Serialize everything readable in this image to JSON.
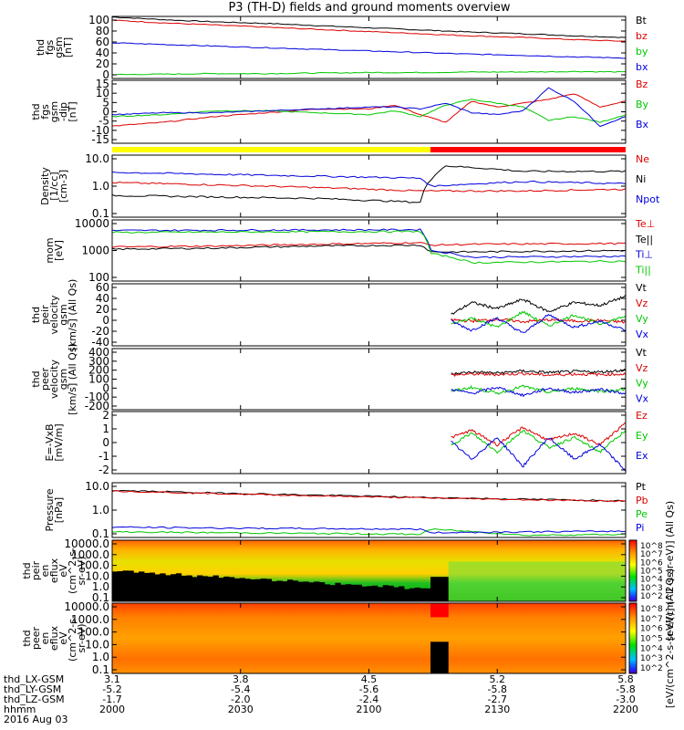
{
  "title": "P3 (TH-D) fields and ground moments overview",
  "date_label": "2016 Aug 03",
  "colors": {
    "red": "#dd0000",
    "green": "#00c800",
    "blue": "#0000dd",
    "black": "#000000",
    "yellow": "#ffff00",
    "barred": "#ff0000"
  },
  "ephemeris": {
    "rows": [
      {
        "label": "thd_LX-GSM",
        "values": [
          "3.1",
          "3.8",
          "4.5",
          "5.2",
          "5.8"
        ]
      },
      {
        "label": "thd_LY-GSM",
        "values": [
          "-5.2",
          "-5.4",
          "-5.6",
          "-5.8",
          "-5.8"
        ]
      },
      {
        "label": "thd_LZ-GSM",
        "values": [
          "-1.7",
          "-2.0",
          "-2.4",
          "-2.7",
          "-3.0"
        ]
      },
      {
        "label": "hhmm",
        "values": [
          "2000",
          "2030",
          "2100",
          "2130",
          "2200"
        ]
      }
    ]
  },
  "colorbars": [
    {
      "label": "[eV/(cm^2-s-sr-eV)] (All Qs)",
      "ticks": [
        "10^8",
        "10^7",
        "10^6",
        "10^5",
        "10^4",
        "10^3",
        "10^2"
      ]
    },
    {
      "label": "[eV/(cm^2-s-sr-eV)] (All Qs)",
      "ticks": [
        "10^8",
        "10^7",
        "10^6",
        "10^5",
        "10^4",
        "10^3",
        "10^2"
      ]
    }
  ],
  "chart_data": {
    "type": "line",
    "x_range": [
      "20:00",
      "22:00"
    ],
    "x_ticks": [
      "3.1",
      "3.8",
      "4.5",
      "5.2",
      "5.8"
    ],
    "mode_bar": {
      "yellow_until": 0.62,
      "red_after": 0.62
    },
    "panels": [
      {
        "id": "p1",
        "ylabel": [
          "thd",
          "fgs",
          "gsm",
          "[nT]"
        ],
        "yticks": [
          "100",
          "80",
          "60",
          "40",
          "20",
          "0"
        ],
        "ylim": [
          -10,
          105
        ],
        "scale": "linear",
        "legend": [
          "Bt",
          "bz",
          "by",
          "bx"
        ],
        "series": [
          {
            "name": "Bt",
            "color": "black",
            "x": [
              0,
              0.1,
              0.2,
              0.3,
              0.4,
              0.5,
              0.6,
              0.7,
              0.8,
              0.9,
              1
            ],
            "y": [
              104,
              99,
              95,
              92,
              88,
              84,
              80,
              76,
              73,
              69,
              66
            ]
          },
          {
            "name": "bz",
            "color": "red",
            "x": [
              0,
              0.1,
              0.2,
              0.3,
              0.4,
              0.5,
              0.6,
              0.7,
              0.8,
              0.9,
              1
            ],
            "y": [
              98,
              93,
              89,
              85,
              81,
              77,
              73,
              69,
              66,
              62,
              59
            ]
          },
          {
            "name": "by",
            "color": "green",
            "x": [
              0,
              0.1,
              0.2,
              0.3,
              0.4,
              0.5,
              0.6,
              0.7,
              0.8,
              0.9,
              1
            ],
            "y": [
              -3,
              -2,
              -1,
              -1,
              0,
              1,
              1,
              2,
              2,
              3,
              2
            ]
          },
          {
            "name": "bx",
            "color": "blue",
            "x": [
              0,
              0.1,
              0.2,
              0.3,
              0.4,
              0.5,
              0.6,
              0.7,
              0.8,
              0.9,
              1
            ],
            "y": [
              56,
              53,
              50,
              47,
              44,
              41,
              38,
              35,
              33,
              30,
              28
            ]
          }
        ]
      },
      {
        "id": "p2",
        "ylabel": [
          "thd",
          "fgs",
          "gsm",
          "-dip",
          "[nT]"
        ],
        "yticks": [
          "15",
          "10",
          "5",
          "0",
          "-5",
          "-10",
          "-15"
        ],
        "ylim": [
          -17,
          16
        ],
        "scale": "linear",
        "legend": [
          "Bz",
          "By",
          "Bx"
        ],
        "series": [
          {
            "name": "Bz",
            "color": "red",
            "x": [
              0,
              0.1,
              0.2,
              0.3,
              0.4,
              0.5,
              0.55,
              0.6,
              0.65,
              0.7,
              0.75,
              0.8,
              0.85,
              0.9,
              0.95,
              1
            ],
            "y": [
              -8,
              -6,
              -3,
              -1,
              1,
              1,
              3,
              -2,
              -6,
              5,
              2,
              4,
              6,
              9,
              2,
              5
            ]
          },
          {
            "name": "By",
            "color": "green",
            "x": [
              0,
              0.1,
              0.2,
              0.3,
              0.4,
              0.5,
              0.55,
              0.6,
              0.65,
              0.7,
              0.75,
              0.8,
              0.85,
              0.9,
              0.95,
              1
            ],
            "y": [
              -3,
              -2,
              0,
              0,
              -1,
              -2,
              0,
              -3,
              3,
              6,
              4,
              2,
              -5,
              -3,
              -6,
              -2
            ]
          },
          {
            "name": "Bx",
            "color": "blue",
            "x": [
              0,
              0.1,
              0.2,
              0.3,
              0.4,
              0.5,
              0.55,
              0.6,
              0.65,
              0.7,
              0.75,
              0.8,
              0.85,
              0.9,
              0.95,
              1
            ],
            "y": [
              -2,
              -1,
              -1,
              0,
              1,
              2,
              2,
              1,
              4,
              -1,
              -2,
              0,
              12,
              5,
              -8,
              -3
            ]
          }
        ]
      },
      {
        "id": "p3",
        "ylabel": [
          "Density",
          "[1/cc]",
          "[cm-3]"
        ],
        "yticks": [
          "10.0",
          "1.0",
          "0.1"
        ],
        "ylim": [
          0.1,
          10
        ],
        "scale": "log",
        "legend": [
          "Ne",
          "Ni",
          "Npot"
        ],
        "series": [
          {
            "name": "Ne",
            "color": "red",
            "x": [
              0,
              0.2,
              0.4,
              0.6,
              0.62,
              0.8,
              1
            ],
            "y": [
              1.3,
              1.1,
              0.9,
              0.7,
              0.7,
              0.7,
              0.8
            ]
          },
          {
            "name": "Ni",
            "color": "black",
            "x": [
              0,
              0.2,
              0.4,
              0.6,
              0.62,
              0.65,
              0.8,
              1
            ],
            "y": [
              0.5,
              0.45,
              0.4,
              0.3,
              1.5,
              4.5,
              3,
              3
            ]
          },
          {
            "name": "Npot",
            "color": "blue",
            "x": [
              0,
              0.2,
              0.4,
              0.6,
              0.62,
              0.8,
              1
            ],
            "y": [
              2.8,
              2.4,
              2.1,
              1.8,
              1.0,
              1.4,
              1.2
            ]
          }
        ]
      },
      {
        "id": "p4",
        "ylabel": [
          "mom",
          "[eV]"
        ],
        "yticks": [
          "10000",
          "1000",
          "100"
        ],
        "ylim": [
          100,
          10000
        ],
        "scale": "log",
        "legend": [
          "Te⊥",
          "Te||",
          "Ti⊥",
          "Ti||"
        ],
        "series": [
          {
            "name": "Te⊥",
            "color": "red",
            "x": [
              0,
              0.2,
              0.4,
              0.6,
              0.62,
              0.7,
              1
            ],
            "y": [
              1300,
              1400,
              1600,
              1800,
              1500,
              1600,
              1700
            ]
          },
          {
            "name": "Te||",
            "color": "black",
            "x": [
              0,
              0.2,
              0.4,
              0.6,
              0.62,
              0.7,
              1
            ],
            "y": [
              1100,
              1200,
              1400,
              1500,
              900,
              900,
              1000
            ]
          },
          {
            "name": "Ti⊥",
            "color": "blue",
            "x": [
              0,
              0.2,
              0.4,
              0.6,
              0.62,
              0.7,
              1
            ],
            "y": [
              4500,
              4600,
              4700,
              4800,
              1000,
              600,
              650
            ]
          },
          {
            "name": "Ti||",
            "color": "green",
            "x": [
              0,
              0.2,
              0.4,
              0.6,
              0.62,
              0.7,
              1
            ],
            "y": [
              3900,
              4000,
              4100,
              4200,
              800,
              400,
              450
            ]
          }
        ]
      },
      {
        "id": "p5",
        "ylabel": [
          "thd",
          "peir",
          "velocity",
          "gsm",
          "[km/s] (All Qs)"
        ],
        "yticks": [
          "60",
          "40",
          "20",
          "0",
          "-20",
          "-40"
        ],
        "ylim": [
          -40,
          60
        ],
        "scale": "linear",
        "legend": [
          "Vt",
          "Vz",
          "Vy",
          "Vx"
        ],
        "series": [
          {
            "name": "Vt",
            "color": "black",
            "x": [
              0.66,
              0.7,
              0.75,
              0.8,
              0.85,
              0.9,
              0.95,
              1
            ],
            "y": [
              10,
              30,
              20,
              35,
              15,
              30,
              25,
              40
            ]
          },
          {
            "name": "Vz",
            "color": "red",
            "x": [
              0.66,
              0.7,
              0.75,
              0.8,
              0.85,
              0.9,
              0.95,
              1
            ],
            "y": [
              2,
              0,
              3,
              -1,
              2,
              0,
              1,
              -2
            ]
          },
          {
            "name": "Vy",
            "color": "green",
            "x": [
              0.66,
              0.7,
              0.75,
              0.8,
              0.85,
              0.9,
              0.95,
              1
            ],
            "y": [
              -5,
              5,
              -10,
              15,
              -8,
              10,
              -5,
              8
            ]
          },
          {
            "name": "Vx",
            "color": "blue",
            "x": [
              0.66,
              0.7,
              0.75,
              0.8,
              0.85,
              0.9,
              0.95,
              1
            ],
            "y": [
              0,
              -15,
              5,
              -20,
              10,
              -10,
              0,
              -15
            ]
          }
        ]
      },
      {
        "id": "p6",
        "ylabel": [
          "thd",
          "peer",
          "velocity",
          "gsm",
          "[km/s] (All Qs)"
        ],
        "yticks": [
          "400",
          "300",
          "200",
          "100",
          "0",
          "-100",
          "-200"
        ],
        "ylim": [
          -200,
          400
        ],
        "scale": "linear",
        "legend": [
          "Vt",
          "Vz",
          "Vy",
          "Vx"
        ],
        "series": [
          {
            "name": "Vt",
            "color": "black",
            "x": [
              0.66,
              0.7,
              0.75,
              0.8,
              0.85,
              0.9,
              0.95,
              1
            ],
            "y": [
              150,
              170,
              160,
              180,
              165,
              175,
              170,
              190
            ]
          },
          {
            "name": "Vz",
            "color": "red",
            "x": [
              0.66,
              0.7,
              0.75,
              0.8,
              0.85,
              0.9,
              0.95,
              1
            ],
            "y": [
              140,
              150,
              145,
              155,
              140,
              150,
              145,
              150
            ]
          },
          {
            "name": "Vy",
            "color": "green",
            "x": [
              0.66,
              0.7,
              0.75,
              0.8,
              0.85,
              0.9,
              0.95,
              1
            ],
            "y": [
              -20,
              20,
              -40,
              30,
              -30,
              10,
              -20,
              0
            ]
          },
          {
            "name": "Vx",
            "color": "blue",
            "x": [
              0.66,
              0.7,
              0.75,
              0.8,
              0.85,
              0.9,
              0.95,
              1
            ],
            "y": [
              0,
              -40,
              20,
              -60,
              10,
              -30,
              0,
              -40
            ]
          }
        ]
      },
      {
        "id": "p7",
        "ylabel": [
          "E=-VxB",
          "[mV/m]"
        ],
        "yticks": [
          "2",
          "1",
          "0",
          "-1",
          "-2"
        ],
        "ylim": [
          -2,
          2.3
        ],
        "scale": "linear",
        "legend": [
          "Ez",
          "Ey",
          "Ex"
        ],
        "series": [
          {
            "name": "Ez",
            "color": "red",
            "x": [
              0.66,
              0.7,
              0.75,
              0.8,
              0.85,
              0.9,
              0.95,
              1
            ],
            "y": [
              0.5,
              1,
              0,
              1.2,
              0.3,
              0.8,
              0,
              1.5
            ]
          },
          {
            "name": "Ey",
            "color": "green",
            "x": [
              0.66,
              0.7,
              0.75,
              0.8,
              0.85,
              0.9,
              0.95,
              1
            ],
            "y": [
              0,
              0.8,
              -0.5,
              1,
              -0.2,
              0.5,
              -0.5,
              1
            ]
          },
          {
            "name": "Ex",
            "color": "blue",
            "x": [
              0.66,
              0.7,
              0.75,
              0.8,
              0.85,
              0.9,
              0.95,
              1
            ],
            "y": [
              0.2,
              -1,
              0.5,
              -1.5,
              0.5,
              -1,
              0,
              -1.8
            ]
          }
        ]
      },
      {
        "id": "p8",
        "ylabel": [
          "Pressure",
          "[nPa]"
        ],
        "yticks": [
          "10.0",
          "1.0",
          "0.1"
        ],
        "ylim": [
          0.1,
          10
        ],
        "scale": "log",
        "legend": [
          "Pt",
          "Pb",
          "Pe",
          "Pi"
        ],
        "series": [
          {
            "name": "Pt",
            "color": "black",
            "x": [
              0,
              0.2,
              0.4,
              0.6,
              0.8,
              1
            ],
            "y": [
              5.2,
              4.2,
              3.5,
              2.9,
              2.5,
              2.2
            ]
          },
          {
            "name": "Pb",
            "color": "red",
            "x": [
              0,
              0.2,
              0.4,
              0.6,
              0.8,
              1
            ],
            "y": [
              5.0,
              4.0,
              3.3,
              2.8,
              2.4,
              2.1
            ]
          },
          {
            "name": "Pe",
            "color": "green",
            "x": [
              0,
              0.2,
              0.4,
              0.6,
              0.62,
              0.8,
              1
            ],
            "y": [
              0.16,
              0.15,
              0.14,
              0.13,
              0.2,
              0.12,
              0.13
            ]
          },
          {
            "name": "Pi",
            "color": "blue",
            "x": [
              0,
              0.2,
              0.4,
              0.6,
              0.62,
              0.8,
              1
            ],
            "y": [
              0.24,
              0.22,
              0.21,
              0.2,
              0.15,
              0.16,
              0.17
            ]
          }
        ]
      },
      {
        "id": "p9",
        "type": "heatmap",
        "ylabel": [
          "thd",
          "peir",
          "en",
          "eflux",
          "eV",
          "(cm^2-s-",
          "sr-eV)"
        ],
        "yticks": [
          "10000.0",
          "1000.0",
          "100.0",
          "10.0",
          "1.0",
          "0.1"
        ],
        "scale": "log"
      },
      {
        "id": "p10",
        "type": "heatmap",
        "ylabel": [
          "thd",
          "peer",
          "en",
          "eflux",
          "eV",
          "(cm^2-s-",
          "sr-eV)"
        ],
        "yticks": [
          "10000.0",
          "1000.0",
          "100.0",
          "10.0",
          "1.0",
          "0.1"
        ],
        "scale": "log"
      }
    ]
  }
}
